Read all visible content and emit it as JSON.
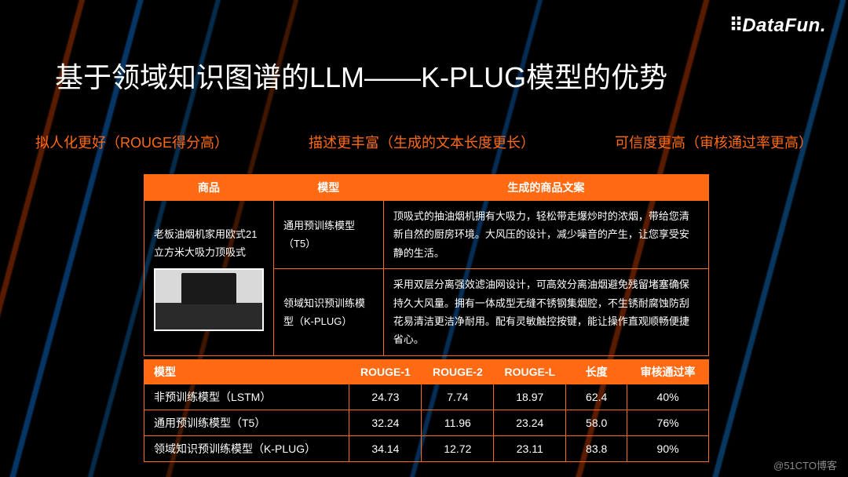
{
  "logo": {
    "text": "DataFun."
  },
  "title": "基于领域知识图谱的LLM——K-PLUG模型的优势",
  "subheads": {
    "a": "拟人化更好（ROUGE得分高）",
    "b": "描述更丰富（生成的文本长度更长）",
    "c": "可信度更高（审核通过率更高）"
  },
  "table1": {
    "headers": {
      "product": "商品",
      "model": "模型",
      "copy": "生成的商品文案"
    },
    "product_name": "老板油烟机家用欧式21立方米大吸力顶吸式",
    "rows": [
      {
        "model": "通用预训练模型（T5）",
        "copy": "顶吸式的抽油烟机拥有大吸力，轻松带走爆炒时的浓烟，带给您清新自然的厨房环境。大风压的设计，减少噪音的产生，让您享受安静的生活。"
      },
      {
        "model": "领域知识预训练模型（K-PLUG）",
        "copy": "采用双层分离强效滤油网设计，可高效分离油烟避免残留堵塞确保持久大风量。拥有一体成型无缝不锈钢集烟腔，不生锈耐腐蚀防刮花易清洁更洁净耐用。配有灵敏触控按键，能让操作直观顺畅便捷省心。"
      }
    ]
  },
  "table2": {
    "columns": [
      "模型",
      "ROUGE-1",
      "ROUGE-2",
      "ROUGE-L",
      "长度",
      "审核通过率"
    ],
    "col_widths": [
      "262px",
      "92px",
      "92px",
      "92px",
      "78px",
      "104px"
    ],
    "rows": [
      {
        "model": "非预训练模型（LSTM）",
        "r1": "24.73",
        "r2": "7.74",
        "rl": "18.97",
        "len": "62.4",
        "pass": "40%"
      },
      {
        "model": "通用预训练模型（T5）",
        "r1": "32.24",
        "r2": "11.96",
        "rl": "23.24",
        "len": "58.0",
        "pass": "76%"
      },
      {
        "model": "领域知识预训练模型（K-PLUG）",
        "r1": "34.14",
        "r2": "12.72",
        "rl": "23.11",
        "len": "83.8",
        "pass": "90%"
      }
    ]
  },
  "colors": {
    "accent": "#ff6a13",
    "bg": "#000000",
    "text": "#ffffff",
    "watermark": "#8a8a8a"
  },
  "watermark": "@51CTO博客"
}
